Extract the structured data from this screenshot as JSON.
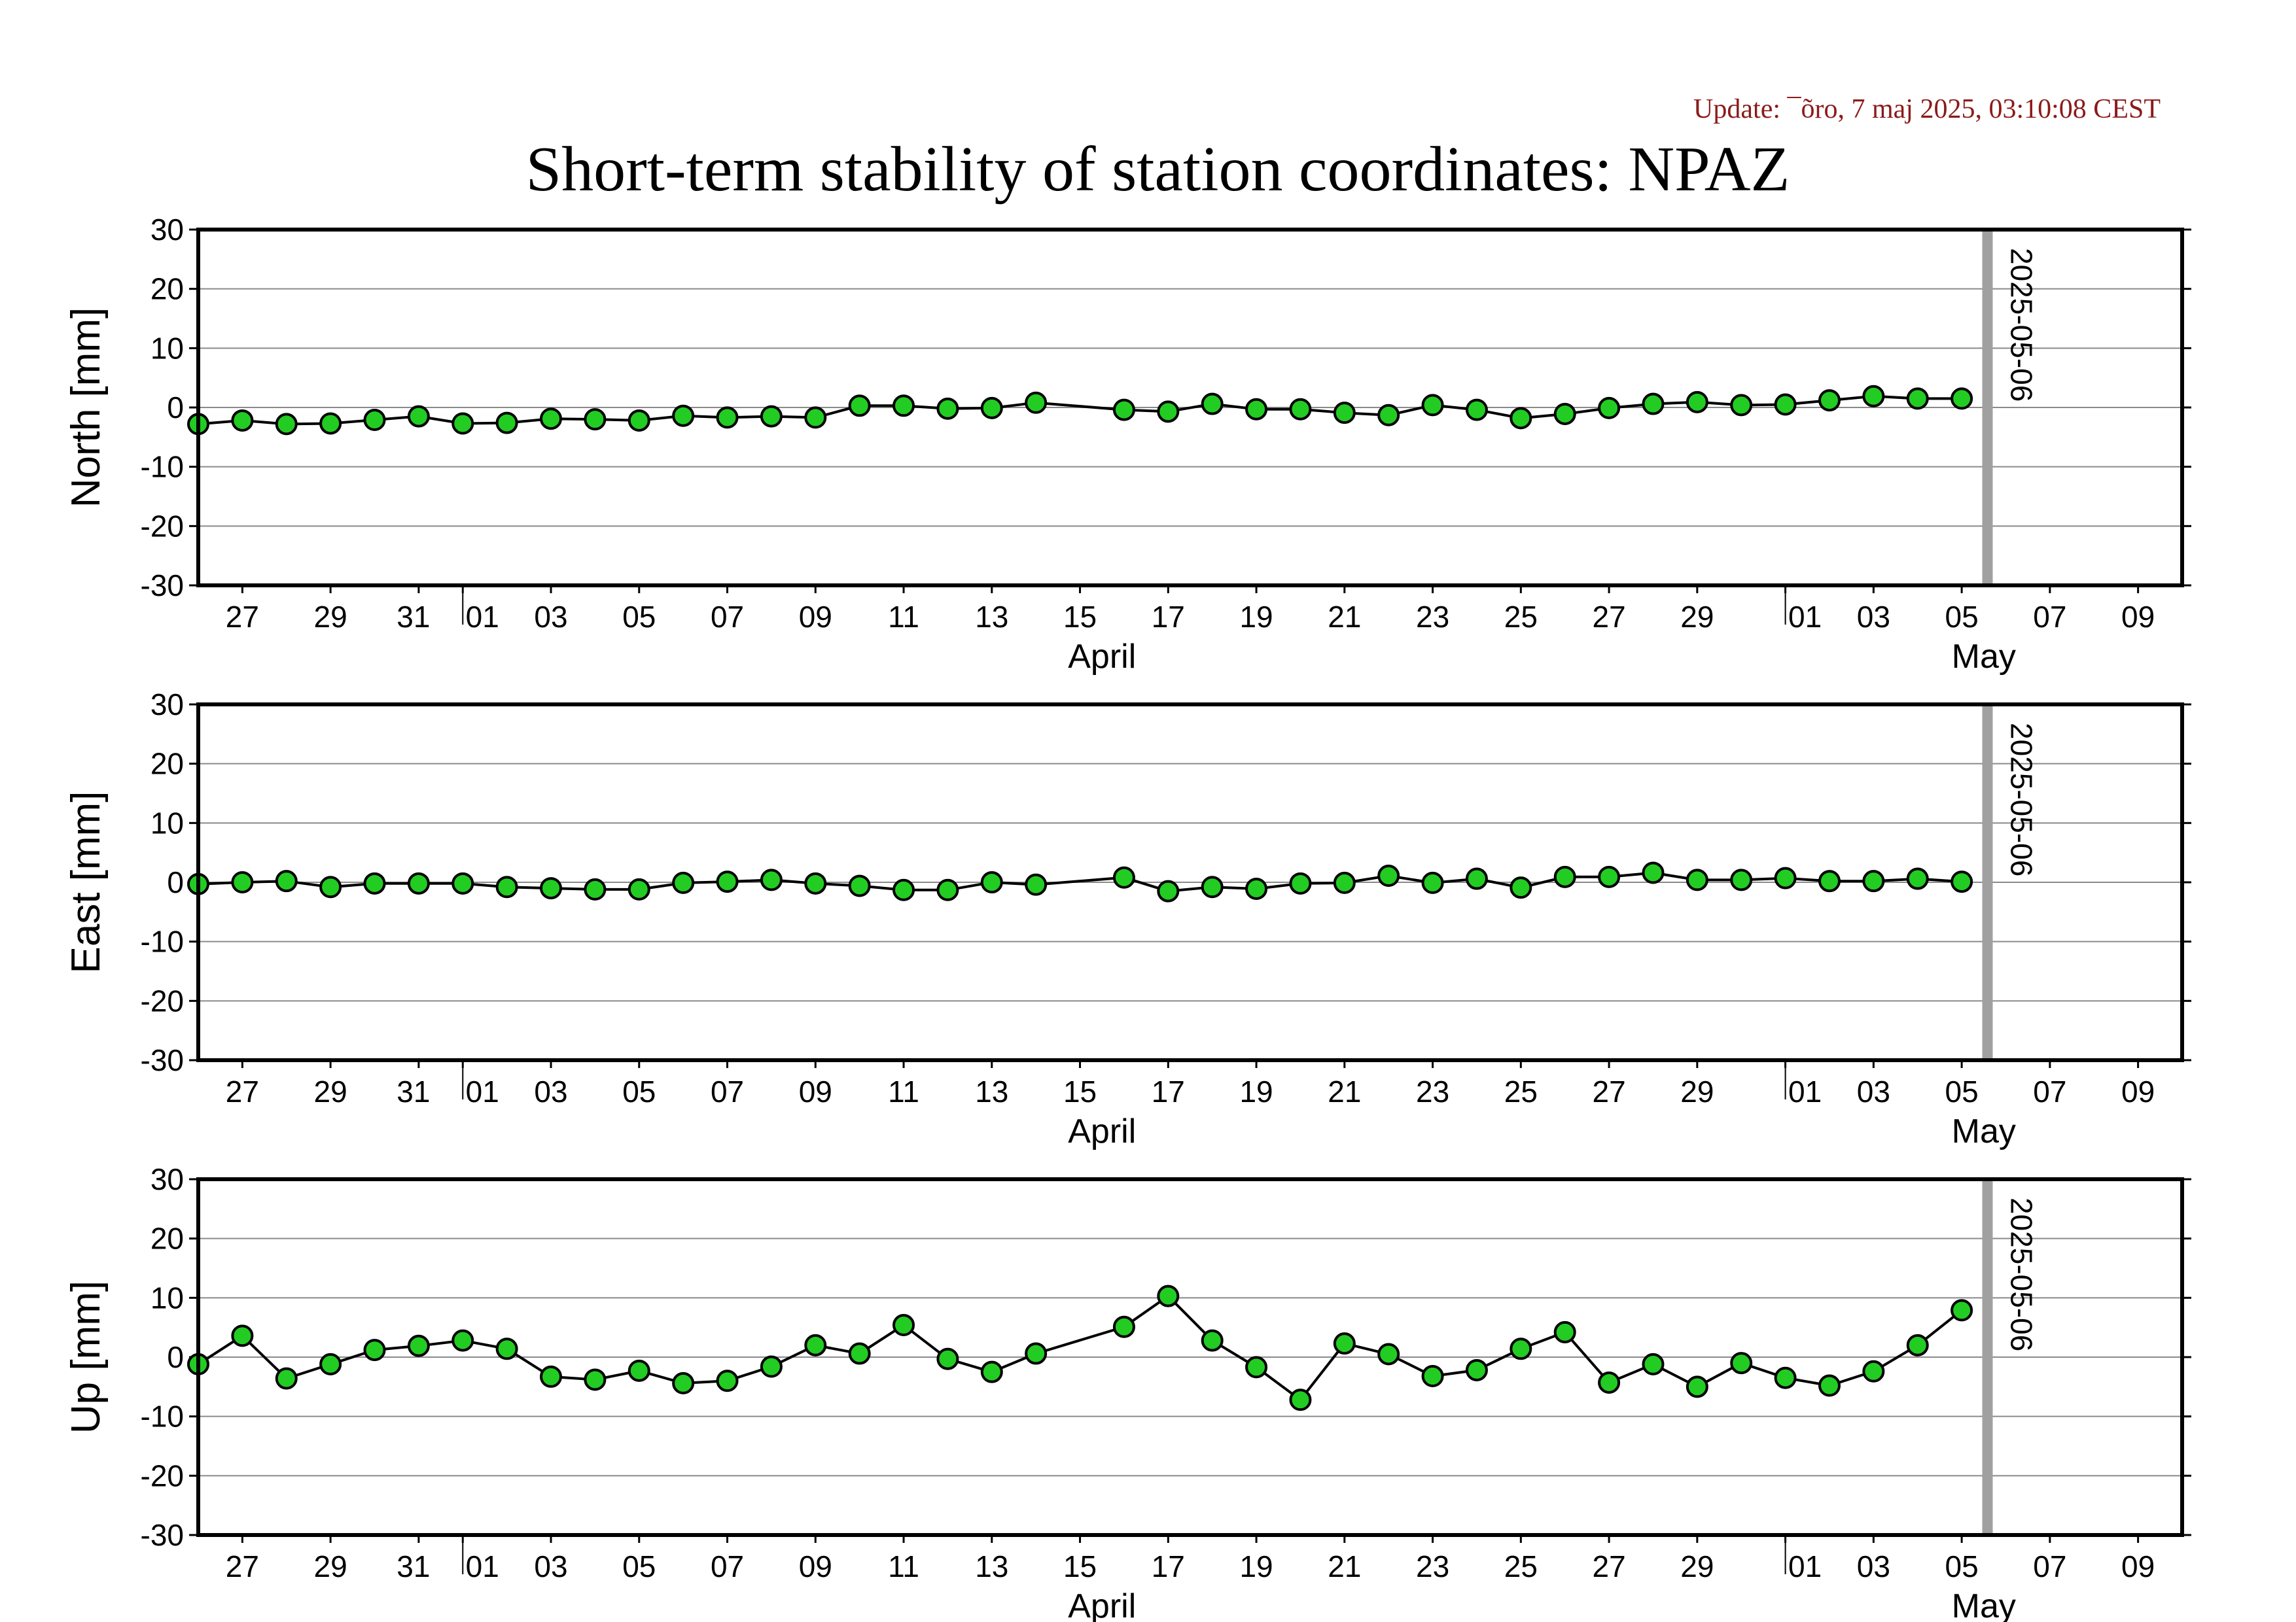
{
  "header": {
    "update": "Update: ¯õro, 7 maj 2025, 03:10:08 CEST",
    "title": "Short-term stability of station coordinates: NPAZ"
  },
  "chart_data": {
    "type": "line",
    "title": "Short-term stability of station coordinates: NPAZ",
    "x_axis": {
      "start": "2025-03-26",
      "end": "2025-05-10",
      "tick_labels": [
        "27",
        "29",
        "31",
        "01",
        "03",
        "05",
        "07",
        "09",
        "11",
        "13",
        "15",
        "17",
        "19",
        "21",
        "23",
        "25",
        "27",
        "29",
        "01",
        "03",
        "05",
        "07",
        "09"
      ],
      "month_labels": [
        "April",
        "May"
      ]
    },
    "marker": {
      "date": "2025-05-06",
      "label": "2025-05-06",
      "color": "#a0a0a0"
    },
    "style": {
      "line_color": "#000000",
      "marker_fill": "#22cc22",
      "marker_edge": "#000000",
      "grid": true
    },
    "panels": [
      {
        "name": "North",
        "ylabel": "North [mm]",
        "ylim": [
          -30,
          30
        ],
        "yticks": [
          "30",
          "20",
          "10",
          "0",
          "-10",
          "-20",
          "-30"
        ],
        "dates": [
          "2025-03-26",
          "2025-03-27",
          "2025-03-28",
          "2025-03-29",
          "2025-03-30",
          "2025-03-31",
          "2025-04-01",
          "2025-04-02",
          "2025-04-03",
          "2025-04-04",
          "2025-04-05",
          "2025-04-06",
          "2025-04-07",
          "2025-04-08",
          "2025-04-09",
          "2025-04-10",
          "2025-04-11",
          "2025-04-12",
          "2025-04-13",
          "2025-04-14",
          "2025-04-16",
          "2025-04-17",
          "2025-04-18",
          "2025-04-19",
          "2025-04-20",
          "2025-04-21",
          "2025-04-22",
          "2025-04-23",
          "2025-04-24",
          "2025-04-25",
          "2025-04-26",
          "2025-04-27",
          "2025-04-28",
          "2025-04-29",
          "2025-04-30",
          "2025-05-01",
          "2025-05-02",
          "2025-05-03",
          "2025-05-04",
          "2025-05-05"
        ],
        "values": [
          -2.8,
          -2.2,
          -2.8,
          -2.7,
          -2.1,
          -1.5,
          -2.7,
          -2.6,
          -1.9,
          -2.0,
          -2.2,
          -1.4,
          -1.7,
          -1.5,
          -1.7,
          0.3,
          0.3,
          -0.2,
          -0.1,
          0.8,
          -0.4,
          -0.7,
          0.6,
          -0.3,
          -0.3,
          -0.9,
          -1.3,
          0.4,
          -0.4,
          -1.8,
          -1.1,
          -0.1,
          0.6,
          0.9,
          0.4,
          0.5,
          1.2,
          1.9,
          1.5,
          1.5
        ]
      },
      {
        "name": "East",
        "ylabel": "East [mm]",
        "ylim": [
          -30,
          30
        ],
        "yticks": [
          "30",
          "20",
          "10",
          "0",
          "-10",
          "-20",
          "-30"
        ],
        "dates": [
          "2025-03-26",
          "2025-03-27",
          "2025-03-28",
          "2025-03-29",
          "2025-03-30",
          "2025-03-31",
          "2025-04-01",
          "2025-04-02",
          "2025-04-03",
          "2025-04-04",
          "2025-04-05",
          "2025-04-06",
          "2025-04-07",
          "2025-04-08",
          "2025-04-09",
          "2025-04-10",
          "2025-04-11",
          "2025-04-12",
          "2025-04-13",
          "2025-04-14",
          "2025-04-16",
          "2025-04-17",
          "2025-04-18",
          "2025-04-19",
          "2025-04-20",
          "2025-04-21",
          "2025-04-22",
          "2025-04-23",
          "2025-04-24",
          "2025-04-25",
          "2025-04-26",
          "2025-04-27",
          "2025-04-28",
          "2025-04-29",
          "2025-04-30",
          "2025-05-01",
          "2025-05-02",
          "2025-05-03",
          "2025-05-04",
          "2025-05-05"
        ],
        "values": [
          -0.3,
          0.0,
          0.2,
          -0.8,
          -0.2,
          -0.2,
          -0.2,
          -0.8,
          -1.0,
          -1.2,
          -1.2,
          -0.1,
          0.1,
          0.4,
          -0.2,
          -0.6,
          -1.3,
          -1.3,
          0.0,
          -0.4,
          0.8,
          -1.5,
          -0.8,
          -1.1,
          -0.2,
          -0.1,
          1.1,
          -0.1,
          0.6,
          -0.9,
          0.9,
          0.9,
          1.6,
          0.4,
          0.4,
          0.7,
          0.2,
          0.2,
          0.6,
          0.1
        ]
      },
      {
        "name": "Up",
        "ylabel": "Up [mm]",
        "ylim": [
          -30,
          30
        ],
        "yticks": [
          "30",
          "20",
          "10",
          "0",
          "-10",
          "-20",
          "-30"
        ],
        "dates": [
          "2025-03-26",
          "2025-03-27",
          "2025-03-28",
          "2025-03-29",
          "2025-03-30",
          "2025-03-31",
          "2025-04-01",
          "2025-04-02",
          "2025-04-03",
          "2025-04-04",
          "2025-04-05",
          "2025-04-06",
          "2025-04-07",
          "2025-04-08",
          "2025-04-09",
          "2025-04-10",
          "2025-04-11",
          "2025-04-12",
          "2025-04-13",
          "2025-04-14",
          "2025-04-16",
          "2025-04-17",
          "2025-04-18",
          "2025-04-19",
          "2025-04-20",
          "2025-04-21",
          "2025-04-22",
          "2025-04-23",
          "2025-04-24",
          "2025-04-25",
          "2025-04-26",
          "2025-04-27",
          "2025-04-28",
          "2025-04-29",
          "2025-04-30",
          "2025-05-01",
          "2025-05-02",
          "2025-05-03",
          "2025-05-04",
          "2025-05-05"
        ],
        "values": [
          -1.2,
          3.6,
          -3.6,
          -1.2,
          1.2,
          1.9,
          2.8,
          1.4,
          -3.3,
          -3.8,
          -2.3,
          -4.4,
          -4.0,
          -1.6,
          2.0,
          0.6,
          5.4,
          -0.3,
          -2.5,
          0.6,
          5.1,
          10.3,
          2.8,
          -1.7,
          -7.2,
          2.3,
          0.5,
          -3.2,
          -2.2,
          1.4,
          4.2,
          -4.3,
          -1.2,
          -5.0,
          -1.0,
          -3.5,
          -4.8,
          -2.4,
          2.0,
          7.9
        ]
      }
    ]
  }
}
